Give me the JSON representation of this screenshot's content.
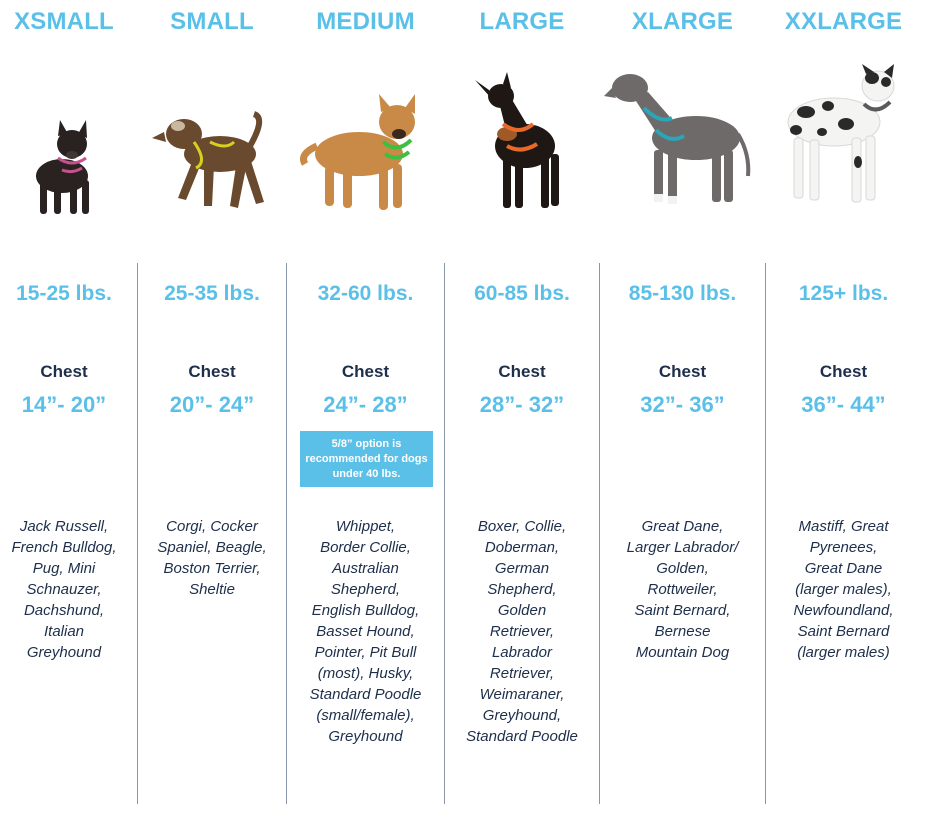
{
  "colors": {
    "accent": "#5bc0e8",
    "text_dark": "#1e2f4b",
    "divider": "#8a97a8"
  },
  "columns": [
    {
      "size": "XSMALL",
      "dog_image": "french-bulldog-icon",
      "weight": "15-25 lbs.",
      "chest_label": "Chest",
      "chest_range": "14”- 20”",
      "breeds": [
        "Jack Russell,",
        "French Bulldog,",
        "Pug, Mini",
        "Schnauzer,",
        "Dachshund,",
        "Italian",
        "Greyhound"
      ]
    },
    {
      "size": "SMALL",
      "dog_image": "terrier-mix-icon",
      "weight": "25-35 lbs.",
      "chest_label": "Chest",
      "chest_range": "20”- 24”",
      "breeds": [
        "Corgi, Cocker",
        "Spaniel, Beagle,",
        "Boston Terrier,",
        "Sheltie"
      ]
    },
    {
      "size": "MEDIUM",
      "dog_image": "shepherd-mix-icon",
      "weight": "32-60 lbs.",
      "chest_label": "Chest",
      "chest_range": "24”- 28”",
      "note": "5/8” option is recommended for dogs under 40 lbs.",
      "breeds": [
        "Whippet,",
        "Border Collie,",
        "Australian",
        "Shepherd,",
        "English Bulldog,",
        "Basset Hound,",
        "Pointer, Pit Bull",
        "(most), Husky,",
        "Standard Poodle",
        "(small/female),",
        "Greyhound"
      ]
    },
    {
      "size": "LARGE",
      "dog_image": "doberman-icon",
      "weight": "60-85 lbs.",
      "chest_label": "Chest",
      "chest_range": "28”- 32”",
      "breeds": [
        "Boxer, Collie,",
        "Doberman,",
        "German",
        "Shepherd,",
        "Golden",
        "Retriever,",
        "Labrador",
        "Retriever,",
        "Weimaraner,",
        "Greyhound,",
        "Standard Poodle"
      ]
    },
    {
      "size": "XLARGE",
      "dog_image": "great-dane-grey-icon",
      "weight": "85-130 lbs.",
      "chest_label": "Chest",
      "chest_range": "32”- 36”",
      "breeds": [
        "Great Dane,",
        "Larger Labrador/",
        "Golden,",
        "Rottweiler,",
        "Saint Bernard,",
        "Bernese",
        "Mountain Dog"
      ]
    },
    {
      "size": "XXLARGE",
      "dog_image": "harlequin-great-dane-icon",
      "weight": "125+ lbs.",
      "chest_label": "Chest",
      "chest_range": "36”- 44”",
      "breeds": [
        "Mastiff, Great",
        "Pyrenees,",
        "Great Dane",
        "(larger males),",
        "Newfoundland,",
        "Saint Bernard",
        "(larger males)"
      ]
    }
  ]
}
